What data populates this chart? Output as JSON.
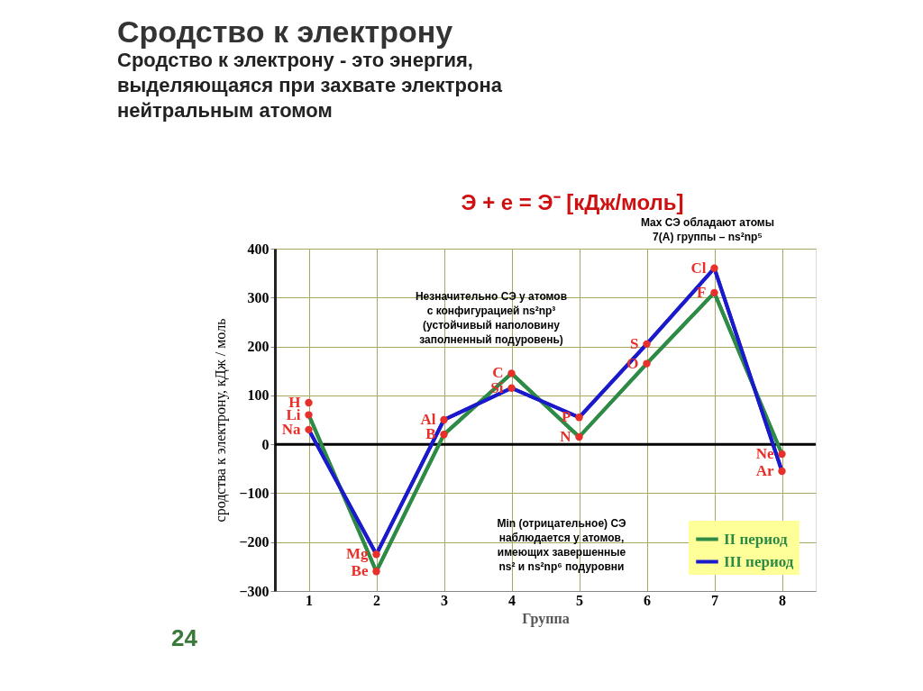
{
  "chart_data": {
    "type": "line",
    "title": "Сродство к электрону",
    "subtitle": [
      "Сродство к электрону - это энергия,",
      "выделяющаяся при захвате электрона",
      "нейтральным атомом"
    ],
    "xlabel": "Группа",
    "ylabel": "сродства к электрону, кДж / моль",
    "categories": [
      "1",
      "2",
      "3",
      "4",
      "5",
      "6",
      "7",
      "8"
    ],
    "series": [
      {
        "name": "II период",
        "color": "#2e8b46",
        "values": [
          60,
          -260,
          20,
          145,
          15,
          165,
          310,
          -20
        ]
      },
      {
        "name": "III период",
        "color": "#1a1acc",
        "values": [
          30,
          -225,
          50,
          115,
          55,
          205,
          360,
          -55
        ]
      },
      {
        "type": "scatter",
        "color": "#e8302a",
        "values": [
          85,
          null,
          null,
          null,
          null,
          null,
          null,
          null
        ]
      }
    ],
    "ylim": [
      -300,
      400
    ],
    "yticks": [
      -300,
      -200,
      -100,
      0,
      100,
      200,
      300,
      400
    ],
    "grid": true,
    "legend": "bottom right",
    "marker": "circle",
    "line_style": "solid",
    "ref_lines": [
      {
        "axis": "y",
        "value": 0,
        "color": "#000000"
      }
    ],
    "annotations": [
      "Э + е = Э⁻    [кДж/моль]",
      "Max СЭ обладают атомы\n7(А) группы – ns²np⁵",
      "Незначительно СЭ у атомов\nс конфигурацией ns²np³\n(устойчивый наполовину\nзаполненный подуровень)",
      "Min (отрицательное) СЭ\nнаблюдается у атомов,\nимеющих завершенные\nns² и ns²np⁶ подуровни",
      "24",
      {
        "text": "H",
        "x": "1",
        "y": 85
      },
      {
        "text": "Li",
        "x": "1",
        "y": 60
      },
      {
        "text": "Na",
        "x": "1",
        "y": 30
      },
      {
        "text": "Be",
        "x": "2",
        "y": -260
      },
      {
        "text": "Mg",
        "x": "2",
        "y": -225
      },
      {
        "text": "Al",
        "x": "3",
        "y": 50
      },
      {
        "text": "B",
        "x": "3",
        "y": 20
      },
      {
        "text": "C",
        "x": "4",
        "y": 145
      },
      {
        "text": "Si",
        "x": "4",
        "y": 115
      },
      {
        "text": "P",
        "x": "5",
        "y": 55
      },
      {
        "text": "N",
        "x": "5",
        "y": 15
      },
      {
        "text": "S",
        "x": "6",
        "y": 205
      },
      {
        "text": "O",
        "x": "6",
        "y": 165
      },
      {
        "text": "Cl",
        "x": "7",
        "y": 360
      },
      {
        "text": "F",
        "x": "7",
        "y": 310
      },
      {
        "text": "Ne",
        "x": "8",
        "y": -20
      },
      {
        "text": "Ar",
        "x": "8",
        "y": -55
      }
    ]
  }
}
